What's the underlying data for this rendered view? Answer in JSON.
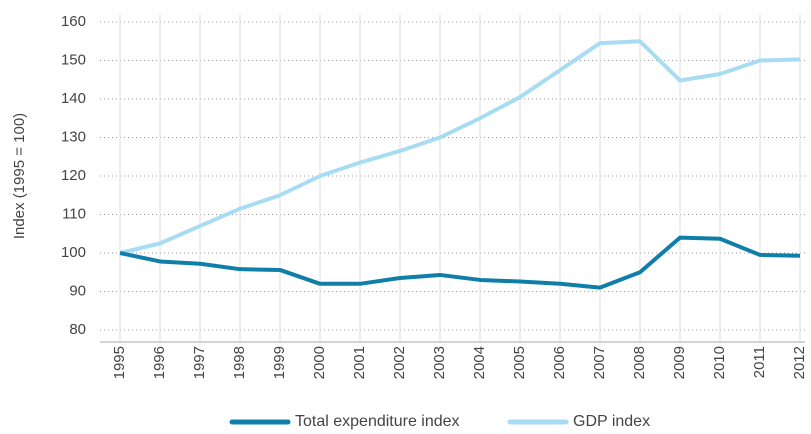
{
  "chart_data": {
    "type": "line",
    "y_label": "Index (1995 = 100)",
    "categories": [
      "1995",
      "1996",
      "1997",
      "1998",
      "1999",
      "2000",
      "2001",
      "2002",
      "2003",
      "2004",
      "2005",
      "2006",
      "2007",
      "2008",
      "2009",
      "2010",
      "2011",
      "2012"
    ],
    "series": [
      {
        "name": "Total expenditure index",
        "color": "#0f7fa9",
        "values": [
          100,
          97.8,
          97.2,
          95.8,
          95.6,
          92,
          92,
          93.5,
          94.3,
          93,
          92.6,
          92,
          91,
          95,
          104,
          103.7,
          99.5,
          99.3
        ]
      },
      {
        "name": "GDP index",
        "color": "#a8dcf2",
        "values": [
          100,
          102.5,
          107,
          111.5,
          115,
          120,
          123.5,
          126.5,
          130,
          135,
          140.5,
          147.5,
          154.5,
          155,
          144.8,
          146.5,
          150,
          150.3
        ]
      }
    ],
    "ylim": [
      80,
      160
    ],
    "yticks": [
      80,
      90,
      100,
      110,
      120,
      130,
      140,
      150,
      160
    ],
    "grid": true,
    "legend": "bottom"
  }
}
